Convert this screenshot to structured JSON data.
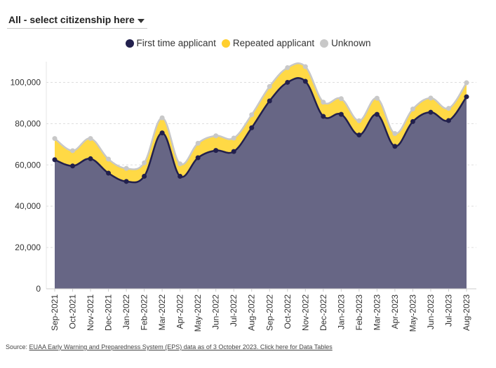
{
  "filter": {
    "label": "All - select citizenship here"
  },
  "legend": [
    {
      "label": "First time applicant",
      "color": "#22204d"
    },
    {
      "label": "Repeated applicant",
      "color": "#ffcf2e"
    },
    {
      "label": "Unknown",
      "color": "#c8c8c8"
    }
  ],
  "colors": {
    "area_first": "#676685",
    "line_first": "#22204d",
    "area_repeated": "#ffd945",
    "line_unknown": "#c8c8c8",
    "grid": "#dddddd"
  },
  "chart_data": {
    "type": "area",
    "stacked": true,
    "categories": [
      "Sep-2021",
      "Oct-2021",
      "Nov-2021",
      "Dec-2021",
      "Jan-2022",
      "Feb-2022",
      "Mar-2022",
      "Apr-2022",
      "May-2022",
      "Jun-2022",
      "Jul-2022",
      "Aug-2022",
      "Sep-2022",
      "Oct-2022",
      "Nov-2022",
      "Dec-2022",
      "Jan-2023",
      "Feb-2023",
      "Mar-2023",
      "Apr-2023",
      "May-2023",
      "Jun-2023",
      "Jul-2023",
      "Aug-2023"
    ],
    "series": [
      {
        "name": "First time applicant",
        "values": [
          62500,
          59500,
          63000,
          56000,
          52000,
          54500,
          75500,
          54500,
          63500,
          67000,
          66500,
          78000,
          91000,
          100000,
          100500,
          83500,
          84500,
          74500,
          84500,
          69000,
          81000,
          85500,
          81500,
          93000
        ]
      },
      {
        "name": "Repeated applicant",
        "values": [
          9800,
          7000,
          9300,
          6500,
          6000,
          6200,
          6800,
          5700,
          6700,
          6800,
          6200,
          6000,
          6700,
          6800,
          6800,
          6600,
          7200,
          6600,
          7400,
          5900,
          5800,
          6600,
          5600,
          6300
        ]
      },
      {
        "name": "Unknown",
        "values": [
          500,
          400,
          500,
          300,
          300,
          300,
          500,
          300,
          300,
          300,
          300,
          300,
          300,
          300,
          300,
          300,
          400,
          300,
          400,
          300,
          300,
          300,
          300,
          500
        ]
      }
    ],
    "ylim": [
      0,
      110000
    ],
    "yticks": [
      0,
      20000,
      40000,
      60000,
      80000,
      100000
    ],
    "ytick_labels": [
      "0",
      "20,000",
      "40,000",
      "60,000",
      "80,000",
      "100,000"
    ],
    "grid": true,
    "legend_position": "top-center",
    "title": "",
    "xlabel": "",
    "ylabel": ""
  },
  "source": {
    "prefix": "Source: ",
    "link_text": "EUAA Early Warning and Preparedness System (EPS) data as of 3 October 2023. Click here for Data Tables"
  }
}
